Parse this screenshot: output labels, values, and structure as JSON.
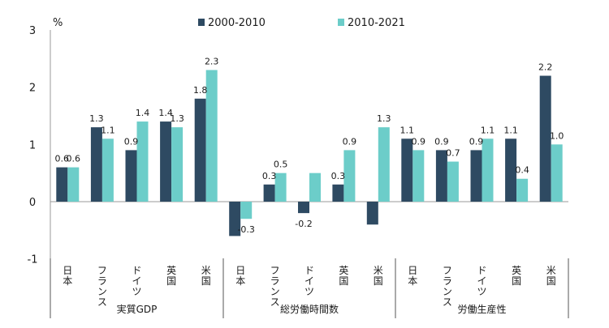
{
  "chart_data": {
    "type": "bar",
    "unit_label": "%",
    "ylim": [
      -1,
      3
    ],
    "yticks": [
      3,
      2,
      1,
      0,
      -1
    ],
    "colors": {
      "series1": "#2e4a62",
      "series2": "#6ccdc9",
      "negative_label": "#e34a2c",
      "text": "#1a1a1a",
      "axis": "#9a9a9a"
    },
    "series": [
      {
        "name": "2000-2010"
      },
      {
        "name": "2010-2021"
      }
    ],
    "groups": [
      {
        "label": "実質GDP",
        "categories": [
          {
            "name": "日本",
            "v1": 0.6,
            "v2": 0.6
          },
          {
            "name": "フランス",
            "v1": 1.3,
            "v2": 1.1
          },
          {
            "name": "ドイツ",
            "v1": 0.9,
            "v2": 1.4
          },
          {
            "name": "英国",
            "v1": 1.4,
            "v2": 1.3
          },
          {
            "name": "米国",
            "v1": 1.8,
            "v2": 2.3
          }
        ]
      },
      {
        "label": "総労働時間数",
        "categories": [
          {
            "name": "日本",
            "v1": -0.6,
            "v2": -0.3
          },
          {
            "name": "フランス",
            "v1": 0.3,
            "v2": 0.5
          },
          {
            "name": "ドイツ",
            "v1": -0.2,
            "v2": 0.5
          },
          {
            "name": "英国",
            "v1": 0.3,
            "v2": 0.9
          },
          {
            "name": "米国",
            "v1": -0.4,
            "v2": 1.3
          }
        ]
      },
      {
        "label": "労働生産性",
        "categories": [
          {
            "name": "日本",
            "v1": 1.1,
            "v2": 0.9
          },
          {
            "name": "フランス",
            "v1": 0.9,
            "v2": 0.7
          },
          {
            "name": "ドイツ",
            "v1": 0.9,
            "v2": 1.1
          },
          {
            "name": "英国",
            "v1": 1.1,
            "v2": 0.4
          },
          {
            "name": "米国",
            "v1": 2.2,
            "v2": 1.0
          }
        ]
      }
    ],
    "hidden_labels": [
      [
        1,
        0,
        "v1"
      ],
      [
        1,
        2,
        "v2"
      ],
      [
        1,
        4,
        "v1"
      ]
    ]
  }
}
